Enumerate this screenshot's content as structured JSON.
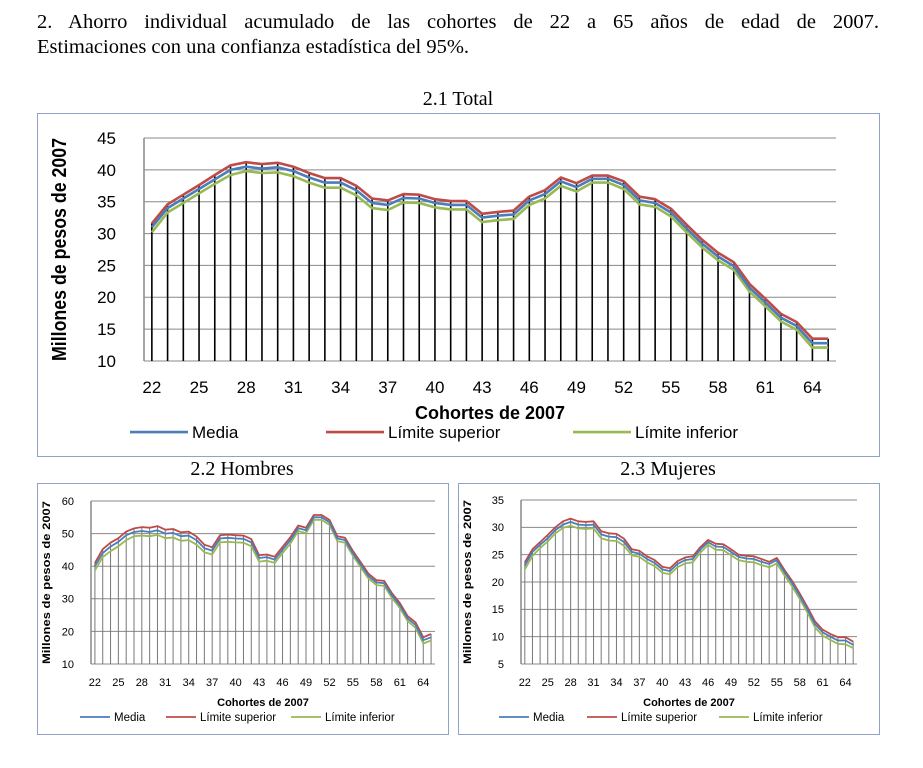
{
  "caption": {
    "line1": "2. Ahorro individual acumulado de las cohortes de 22 a 65 años de edad de 2007.",
    "line2": "Estimaciones con una confianza estadística del 95%."
  },
  "colors": {
    "media": "#4a7ebb",
    "superior": "#be4b48",
    "inferior": "#98b954"
  },
  "chart_data": [
    {
      "type": "line",
      "title": "2.1 Total",
      "xlabel": "Cohortes de 2007",
      "ylabel": "Millones de pesos de 2007",
      "ylim": [
        10,
        45
      ],
      "yticks": [
        10,
        15,
        20,
        25,
        30,
        35,
        40,
        45
      ],
      "xticks": [
        22,
        25,
        28,
        31,
        34,
        37,
        40,
        43,
        46,
        49,
        52,
        55,
        58,
        61,
        64
      ],
      "grid": true,
      "legend": "bottom",
      "x": [
        22,
        23,
        24,
        25,
        26,
        27,
        28,
        29,
        30,
        31,
        32,
        33,
        34,
        35,
        36,
        37,
        38,
        39,
        40,
        41,
        42,
        43,
        44,
        45,
        46,
        47,
        48,
        49,
        50,
        51,
        52,
        53,
        54,
        55,
        56,
        57,
        58,
        59,
        60,
        61,
        62,
        63,
        64,
        65
      ],
      "series": [
        {
          "name": "Media",
          "values": [
            31,
            34,
            35.5,
            37,
            38.5,
            40,
            40.5,
            40.2,
            40.4,
            39.8,
            38.8,
            38,
            38,
            36.8,
            34.8,
            34.5,
            35.6,
            35.5,
            34.8,
            34.5,
            34.5,
            32.5,
            32.8,
            33,
            35.2,
            36.2,
            38.2,
            37.3,
            38.6,
            38.6,
            37.6,
            35.2,
            34.8,
            33.3,
            30.8,
            28.4,
            26.4,
            24.9,
            21.5,
            19.2,
            16.8,
            15.5,
            12.8,
            12.8
          ]
        },
        {
          "name": "Límite superior",
          "values": [
            31.6,
            34.6,
            36.1,
            37.6,
            39.2,
            40.7,
            41.2,
            40.9,
            41.1,
            40.5,
            39.5,
            38.7,
            38.7,
            37.5,
            35.5,
            35.2,
            36.2,
            36.1,
            35.4,
            35.1,
            35.1,
            33.1,
            33.4,
            33.6,
            35.8,
            36.8,
            38.8,
            37.9,
            39.1,
            39.1,
            38.2,
            35.8,
            35.4,
            33.9,
            31.4,
            29,
            27,
            25.5,
            22.1,
            19.8,
            17.4,
            16.1,
            13.5,
            13.5
          ]
        },
        {
          "name": "Límite inferior",
          "values": [
            30.2,
            33.3,
            34.8,
            36.3,
            37.8,
            39.2,
            39.8,
            39.5,
            39.6,
            39,
            38,
            37.2,
            37.2,
            36,
            34,
            33.7,
            34.9,
            34.8,
            34.1,
            33.8,
            33.8,
            31.8,
            32.1,
            32.3,
            34.5,
            35.5,
            37.5,
            36.6,
            38,
            38,
            37,
            34.6,
            34.2,
            32.7,
            30.2,
            27.8,
            25.8,
            24.3,
            20.9,
            18.6,
            16.2,
            14.9,
            12.1,
            12.1
          ]
        }
      ]
    },
    {
      "type": "line",
      "title": "2.2 Hombres",
      "xlabel": "Cohortes de 2007",
      "ylabel": "Millones de pesos de 2007",
      "ylim": [
        10,
        60
      ],
      "yticks": [
        10,
        20,
        30,
        40,
        50,
        60
      ],
      "xticks": [
        22,
        25,
        28,
        31,
        34,
        37,
        40,
        43,
        46,
        49,
        52,
        55,
        58,
        61,
        64
      ],
      "grid": true,
      "legend": "bottom",
      "x": [
        22,
        23,
        24,
        25,
        26,
        27,
        28,
        29,
        30,
        31,
        32,
        33,
        34,
        35,
        36,
        37,
        38,
        39,
        40,
        41,
        42,
        43,
        44,
        45,
        46,
        47,
        48,
        49,
        50,
        51,
        52,
        53,
        54,
        55,
        56,
        57,
        58,
        59,
        60,
        61,
        62,
        63,
        64,
        65
      ],
      "series": [
        {
          "name": "Media",
          "values": [
            40,
            44,
            46,
            47.5,
            49.5,
            50.5,
            50.8,
            50.5,
            51,
            50,
            50.2,
            49.2,
            49.4,
            48,
            45.5,
            44.8,
            48.5,
            48.7,
            48.5,
            48.4,
            47.3,
            42.5,
            42.8,
            42,
            45,
            48,
            51.7,
            51,
            55,
            55,
            53.5,
            48.5,
            48,
            44,
            40.5,
            37,
            35,
            34.8,
            31,
            28,
            24,
            22,
            17.3,
            18.2
          ]
        },
        {
          "name": "Límite superior",
          "values": [
            41,
            45.2,
            47.2,
            48.6,
            50.6,
            51.6,
            52,
            51.8,
            52.3,
            51.2,
            51.4,
            50.4,
            50.6,
            49.1,
            46.6,
            45.8,
            49.5,
            49.7,
            49.5,
            49.4,
            48.3,
            43.4,
            43.6,
            42.9,
            45.9,
            48.9,
            52.5,
            51.8,
            55.7,
            55.7,
            54.2,
            49.2,
            48.7,
            44.7,
            41.2,
            37.7,
            35.7,
            35.5,
            31.7,
            28.7,
            24.7,
            22.8,
            18.2,
            19.2
          ]
        },
        {
          "name": "Límite inferior",
          "values": [
            38.7,
            42.8,
            44.6,
            46.1,
            48,
            49.2,
            49.4,
            49.2,
            49.6,
            48.6,
            48.8,
            47.8,
            48,
            46.6,
            44.3,
            43.6,
            47.3,
            47.5,
            47.3,
            47.2,
            46.1,
            41.4,
            41.7,
            41,
            44,
            47,
            50.8,
            50.1,
            54.2,
            54.2,
            52.7,
            47.7,
            47.2,
            43.2,
            39.7,
            36.2,
            34.2,
            34,
            30.2,
            27.2,
            23.2,
            21.1,
            16.3,
            17.2
          ]
        }
      ]
    },
    {
      "type": "line",
      "title": "2.3 Mujeres",
      "xlabel": "Cohortes de 2007",
      "ylabel": "Millones de pesos de 2007",
      "ylim": [
        5,
        35
      ],
      "yticks": [
        5,
        10,
        15,
        20,
        25,
        30,
        35
      ],
      "xticks": [
        22,
        25,
        28,
        31,
        34,
        37,
        40,
        43,
        46,
        49,
        52,
        55,
        58,
        61,
        64
      ],
      "grid": true,
      "legend": "bottom",
      "x": [
        22,
        23,
        24,
        25,
        26,
        27,
        28,
        29,
        30,
        31,
        32,
        33,
        34,
        35,
        36,
        37,
        38,
        39,
        40,
        41,
        42,
        43,
        44,
        45,
        46,
        47,
        48,
        49,
        50,
        51,
        52,
        53,
        54,
        55,
        56,
        57,
        58,
        59,
        60,
        61,
        62,
        63,
        64,
        65
      ],
      "series": [
        {
          "name": "Media",
          "values": [
            23,
            25.5,
            26.8,
            28,
            29.5,
            30.5,
            31,
            30.5,
            30.4,
            30.5,
            28.7,
            28.3,
            28.2,
            27.3,
            25.5,
            25.2,
            24.2,
            23.5,
            22.3,
            22,
            23.3,
            24,
            24.2,
            26,
            27.3,
            26.5,
            26.4,
            25.5,
            24.6,
            24.3,
            24.2,
            23.7,
            23.3,
            24,
            21.8,
            19.8,
            17.5,
            15,
            12.3,
            10.8,
            10,
            9.3,
            9.3,
            8.5
          ]
        },
        {
          "name": "Límite superior",
          "values": [
            23.6,
            26,
            27.3,
            28.6,
            30,
            31.1,
            31.6,
            31.1,
            31,
            31.1,
            29.3,
            28.9,
            28.8,
            27.9,
            26,
            25.7,
            24.7,
            24,
            22.8,
            22.5,
            23.8,
            24.5,
            24.7,
            26.4,
            27.7,
            27,
            26.9,
            26,
            25,
            24.8,
            24.7,
            24.2,
            23.7,
            24.4,
            22.2,
            20.2,
            17.9,
            15.4,
            12.8,
            11.3,
            10.5,
            9.9,
            9.9,
            9.1
          ]
        },
        {
          "name": "Límite inferior",
          "values": [
            22.3,
            24.8,
            26.2,
            27.4,
            28.9,
            29.9,
            30.3,
            29.8,
            29.7,
            29.8,
            28,
            27.6,
            27.5,
            26.6,
            24.9,
            24.6,
            23.6,
            22.9,
            21.7,
            21.4,
            22.7,
            23.4,
            23.6,
            25.4,
            26.8,
            25.9,
            25.8,
            24.9,
            24,
            23.7,
            23.6,
            23.1,
            22.7,
            23.4,
            21.2,
            19.2,
            16.9,
            14.4,
            11.7,
            10.2,
            9.4,
            8.7,
            8.6,
            7.9
          ]
        }
      ]
    }
  ]
}
